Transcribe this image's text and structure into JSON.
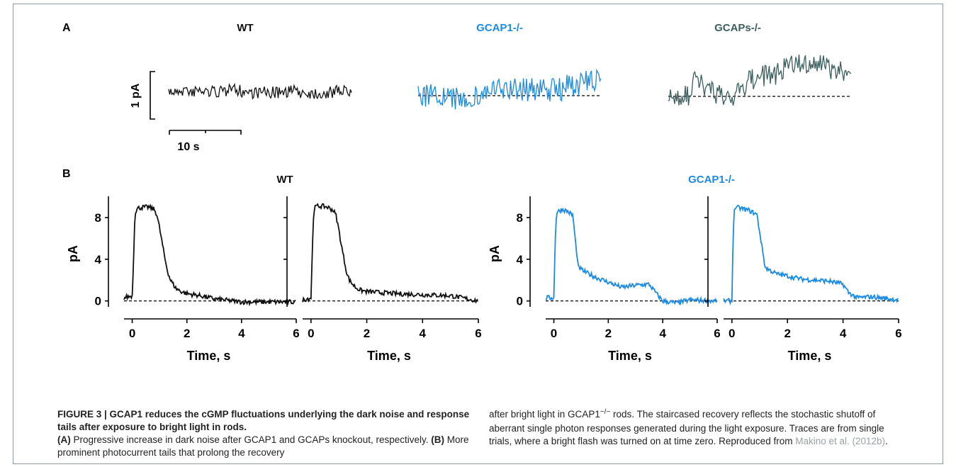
{
  "panel_a": {
    "label": "A",
    "titles": [
      "WT",
      "GCAP1-/-",
      "GCAPs-/-"
    ],
    "scale_y": "1 pA",
    "scale_x": "10 s"
  },
  "panel_b": {
    "label": "B",
    "group_titles": [
      "WT",
      "GCAP1-/-"
    ],
    "ylabel": "pA",
    "xlabel": "Time, s",
    "yticks": [
      "0",
      "4",
      "8"
    ],
    "xticks": [
      "0",
      "2",
      "4",
      "6"
    ]
  },
  "colors": {
    "wt": "#111111",
    "gcap1": "#1a8ae6",
    "gcaps": "#3d5f5f"
  },
  "caption": {
    "title": "FIGURE 3 | GCAP1 reduces the cGMP fluctuations underlying the dark noise and response tails after exposure to bright light in rods.",
    "a_label": "(A)",
    "a_text": " Progressive increase in dark noise after GCAP1 and GCAPs knockout, respectively. ",
    "b_label": "(B)",
    "b_text": " More prominent photocurrent tails that prolong the recovery",
    "right_1": "after bright light in GCAP1",
    "right_sup": "−/−",
    "right_2": " rods. The staircased recovery reflects the stochastic shutoff of aberrant single photon responses generated during the light exposure. Traces are from single trials, where a bright flash was turned on at time zero. Reproduced from ",
    "ref": "Makino et al. (2012b)",
    "right_end": "."
  },
  "chart_data": [
    {
      "type": "line",
      "title": "WT",
      "ylabel": "1 pA",
      "xlabel": "10 s",
      "description_series": [
        {
          "name": "WT",
          "noise_amplitude_pA": 0.25,
          "duration_s": 25
        }
      ]
    },
    {
      "type": "line",
      "title": "GCAP1-/-",
      "description_series": [
        {
          "name": "GCAP1-/-",
          "noise_amplitude_pA": 0.45,
          "duration_s": 25
        }
      ]
    },
    {
      "type": "line",
      "title": "GCAPs-/-",
      "description_series": [
        {
          "name": "GCAPs-/-",
          "noise_amplitude_pA": 0.9,
          "duration_s": 25
        }
      ]
    },
    {
      "type": "line",
      "title": "WT",
      "xlabel": "Time, s",
      "ylabel": "pA",
      "xlim": [
        -0.3,
        6
      ],
      "ylim": [
        -0.5,
        9.5
      ],
      "series": [
        {
          "x": [
            -0.3,
            0,
            0.05,
            0.1,
            0.2,
            0.4,
            0.6,
            0.8,
            0.9,
            1.0,
            1.1,
            1.2,
            1.3,
            1.4,
            1.6,
            1.8,
            2.0,
            2.5,
            3.0,
            4.0,
            5.0,
            6.0
          ],
          "y": [
            0.3,
            0.5,
            4.0,
            8.5,
            8.9,
            9.0,
            9.0,
            8.8,
            8.3,
            7.0,
            5.5,
            4.0,
            2.8,
            2.0,
            1.2,
            0.9,
            0.7,
            0.5,
            0.2,
            -0.1,
            -0.1,
            -0.1
          ]
        },
        {
          "x": [
            -0.3,
            0,
            0.05,
            0.1,
            0.2,
            0.4,
            0.6,
            0.8,
            0.9,
            1.0,
            1.1,
            1.2,
            1.3,
            1.4,
            1.6,
            1.8,
            2.0,
            2.5,
            3.0,
            4.0,
            5.0,
            6.0
          ],
          "y": [
            0.1,
            0.3,
            5.0,
            8.8,
            9.1,
            9.1,
            9.0,
            8.7,
            8.2,
            6.8,
            5.2,
            3.8,
            2.5,
            1.9,
            1.3,
            1.0,
            0.9,
            0.8,
            0.7,
            0.6,
            0.5,
            0.0
          ]
        }
      ]
    },
    {
      "type": "line",
      "title": "GCAP1-/-",
      "xlabel": "Time, s",
      "ylabel": "pA",
      "xlim": [
        -0.3,
        6
      ],
      "ylim": [
        -0.5,
        9.5
      ],
      "series": [
        {
          "x": [
            -0.3,
            0,
            0.05,
            0.1,
            0.3,
            0.5,
            0.7,
            0.8,
            0.9,
            1.2,
            1.6,
            2.0,
            2.5,
            3.0,
            3.5,
            3.8,
            4.0,
            4.5,
            5.0,
            6.0
          ],
          "y": [
            0.3,
            0.3,
            6.0,
            8.5,
            8.8,
            8.6,
            8.2,
            5.5,
            3.2,
            2.7,
            2.2,
            1.8,
            1.3,
            1.5,
            1.6,
            0.6,
            0.0,
            -0.2,
            0.1,
            0.0
          ]
        },
        {
          "x": [
            -0.3,
            0,
            0.05,
            0.1,
            0.3,
            0.6,
            0.9,
            1.2,
            1.6,
            2.0,
            2.5,
            3.0,
            3.5,
            4.0,
            4.2,
            4.5,
            5.0,
            6.0
          ],
          "y": [
            0.0,
            0.0,
            7.0,
            9.0,
            8.9,
            8.7,
            8.3,
            3.2,
            2.6,
            2.4,
            2.1,
            2.0,
            1.9,
            1.6,
            0.8,
            0.3,
            0.4,
            0.1
          ]
        }
      ]
    }
  ]
}
